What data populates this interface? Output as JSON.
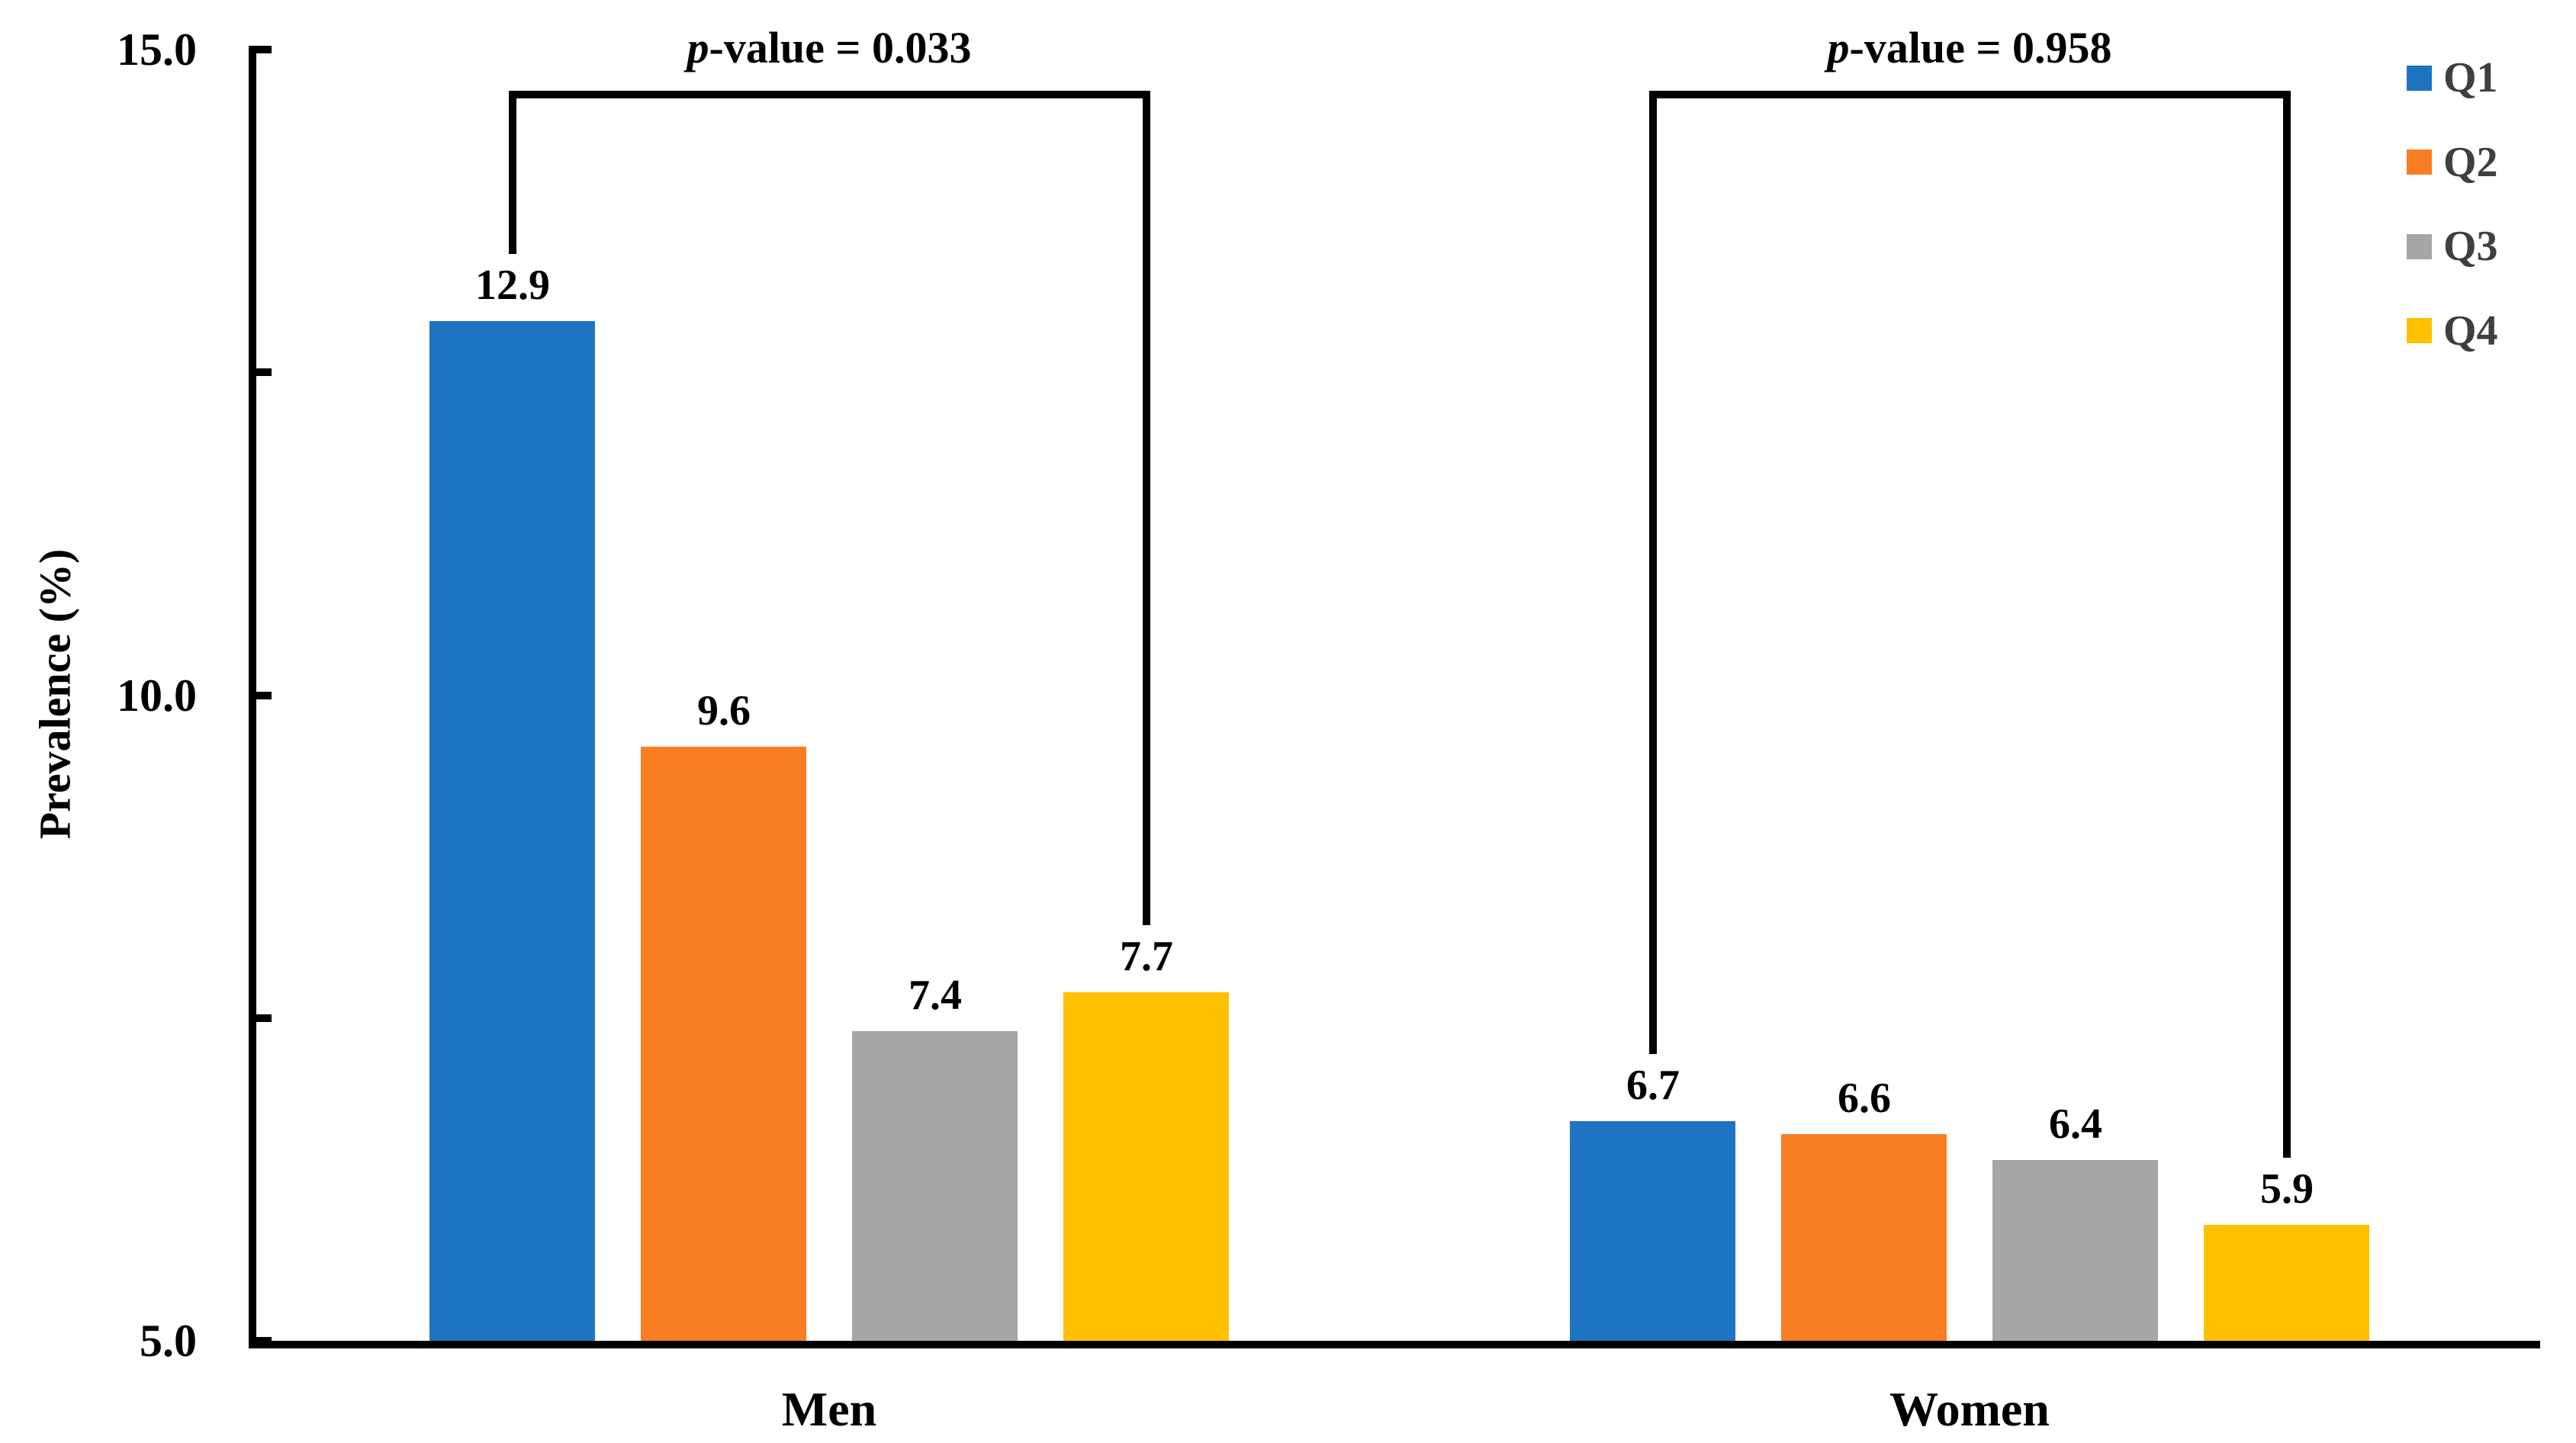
{
  "chart_data": {
    "type": "bar",
    "title": "",
    "xlabel": "",
    "ylabel": "Prevalence (%)",
    "ylim": [
      5.0,
      15.0
    ],
    "yticks": [
      {
        "value": 15.0,
        "label": "15.0"
      },
      {
        "value": 12.5,
        "label": ""
      },
      {
        "value": 10.0,
        "label": "10.0"
      },
      {
        "value": 7.5,
        "label": ""
      },
      {
        "value": 5.0,
        "label": "5.0"
      }
    ],
    "grid": false,
    "categories": [
      "Men",
      "Women"
    ],
    "series": [
      {
        "name": "Q1",
        "color": "#1E73C2",
        "values": [
          12.9,
          6.7
        ],
        "labels": [
          "12.9",
          "6.7"
        ]
      },
      {
        "name": "Q2",
        "color": "#F97D23",
        "values": [
          9.6,
          6.6
        ],
        "labels": [
          "9.6",
          "6.6"
        ]
      },
      {
        "name": "Q3",
        "color": "#A6A6A6",
        "values": [
          7.4,
          6.4
        ],
        "labels": [
          "7.4",
          "6.4"
        ]
      },
      {
        "name": "Q4",
        "color": "#FFC000",
        "values": [
          7.7,
          5.9
        ],
        "labels": [
          "7.7",
          "5.9"
        ]
      }
    ],
    "legend": {
      "position": "top-right",
      "entries": [
        {
          "label": "Q1",
          "color": "#1E73C2"
        },
        {
          "label": "Q2",
          "color": "#F97D23"
        },
        {
          "label": "Q3",
          "color": "#A6A6A6"
        },
        {
          "label": "Q4",
          "color": "#FFC000"
        }
      ],
      "text_color": "#3F3F3F"
    },
    "annotations": [
      {
        "group": "Men",
        "from_series": "Q1",
        "to_series": "Q4",
        "label": "p-value = 0.033"
      },
      {
        "group": "Women",
        "from_series": "Q1",
        "to_series": "Q4",
        "label": "p-value = 0.958"
      }
    ],
    "axis_color": "#000000"
  }
}
